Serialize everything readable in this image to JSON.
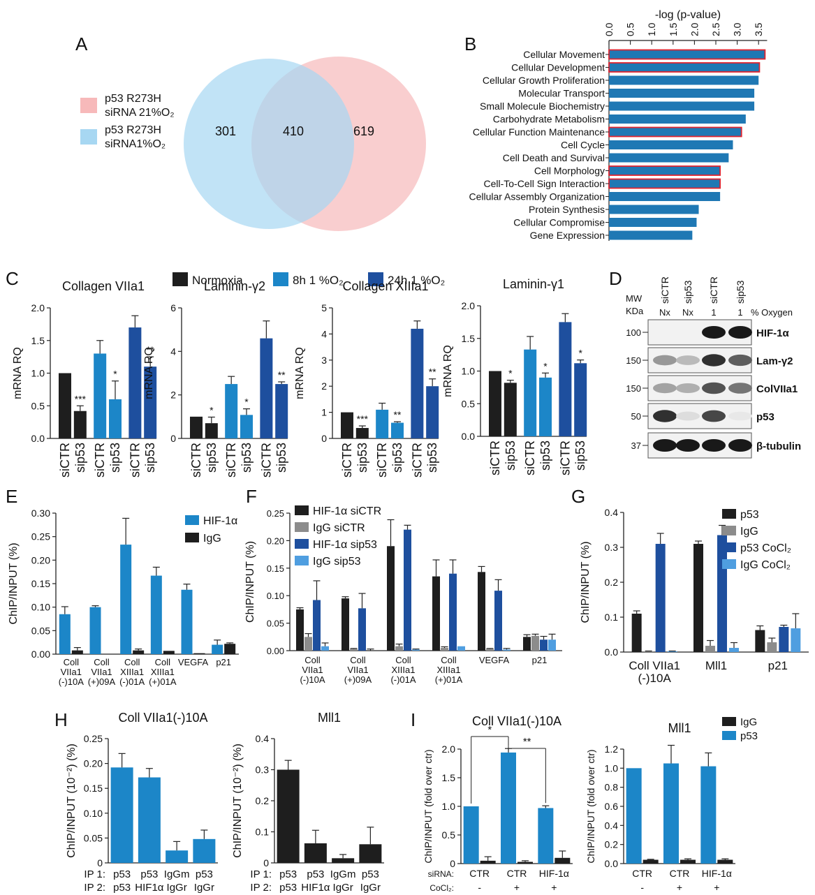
{
  "colors": {
    "black": "#1e1e1e",
    "gray": "#8c8c8c",
    "mid_blue": "#1c86c8",
    "dark_blue": "#1e4f9e",
    "light_blue": "#4f9ee0",
    "pink": "#f7b9ba",
    "lightblue_venn": "#a7d7f2",
    "red_box": "#e0242f",
    "panelB_bar": "#1f78b4"
  },
  "panel_letters": [
    "A",
    "B",
    "C",
    "D",
    "E",
    "F",
    "G",
    "H",
    "I"
  ],
  "panel_A": {
    "legend": [
      {
        "label_line1": "p53 R273H",
        "label_line2": "siRNA 21%O₂",
        "color": "pink"
      },
      {
        "label_line1": "p53 R273H",
        "label_line2": "siRNA1%O₂",
        "color": "lightblue_venn"
      }
    ],
    "counts": {
      "left": "301",
      "overlap": "410",
      "right": "619"
    }
  },
  "panel_B": {
    "title": "-log (p-value)",
    "ticks": [
      "0.0",
      "0.5",
      "1.0",
      "1.5",
      "2.0",
      "2.5",
      "3.0",
      "3.5"
    ]
  },
  "panel_C": {
    "legend": [
      {
        "label": "Normoxia",
        "color": "black"
      },
      {
        "label": "8h 1 %O₂",
        "color": "mid_blue"
      },
      {
        "label": "24h 1 %O₂",
        "color": "dark_blue"
      }
    ]
  },
  "panel_D": {
    "mw_header": "MW",
    "kda_header": "KDa",
    "oxygen_label": "% Oxygen",
    "lanes": [
      {
        "label": "siCTR",
        "oxygen": "Nx"
      },
      {
        "label": "sip53",
        "oxygen": "Nx"
      },
      {
        "label": "siCTR",
        "oxygen": "1"
      },
      {
        "label": "sip53",
        "oxygen": "1"
      }
    ],
    "blots": [
      {
        "mw": "100",
        "name": "HIF-1α",
        "intensity": [
          0,
          0,
          1,
          1
        ]
      },
      {
        "mw": "150",
        "name": "Lam-γ2",
        "intensity": [
          0.45,
          0.3,
          0.9,
          0.7
        ]
      },
      {
        "mw": "150",
        "name": "ColVIIa1",
        "intensity": [
          0.4,
          0.35,
          0.75,
          0.6
        ]
      },
      {
        "mw": "50",
        "name": "p53",
        "intensity": [
          0.9,
          0.15,
          0.8,
          0.1
        ]
      },
      {
        "mw": "37",
        "name": "β-tubulin",
        "intensity": [
          1,
          1,
          1,
          1
        ]
      }
    ]
  },
  "chart_data": [
    {
      "id": "B",
      "type": "bar",
      "orientation": "horizontal",
      "title": "-log (p-value)",
      "xlim": [
        0,
        3.7
      ],
      "categories": [
        "Cellular Movement",
        "Cellular Development",
        "Cellular Growth Proliferation",
        "Molecular Transport",
        "Small Molecule Biochemistry",
        "Carbohydrate Metabolism",
        "Cellular Function Maintenance",
        "Cell Cycle",
        "Cell Death and Survival",
        "Cell Morphology",
        "Cell-To-Cell Sign Interaction",
        "Cellular Assembly Organization",
        "Protein Synthesis",
        "Cellular Compromise",
        "Gene Expression"
      ],
      "values": [
        3.65,
        3.52,
        3.5,
        3.4,
        3.4,
        3.2,
        3.1,
        2.9,
        2.8,
        2.6,
        2.6,
        2.6,
        2.1,
        2.05,
        1.95
      ],
      "highlighted": [
        true,
        true,
        false,
        false,
        false,
        false,
        true,
        false,
        false,
        true,
        true,
        false,
        false,
        false,
        false
      ]
    },
    {
      "id": "C1",
      "type": "bar",
      "title": "Collagen VIIa1",
      "ylabel": "mRNA RQ",
      "ylim": [
        0,
        2.0
      ],
      "yticks": [
        "0.0",
        "0.5",
        "1.0",
        "1.5",
        "2.0"
      ],
      "categories": [
        "siCTR",
        "sip53",
        "siCTR",
        "sip53",
        "siCTR",
        "sip53"
      ],
      "values": [
        1.0,
        0.42,
        1.3,
        0.6,
        1.7,
        1.1
      ],
      "errors": [
        0,
        0.08,
        0.2,
        0.28,
        0.18,
        0.15
      ],
      "colors": [
        "black",
        "black",
        "mid_blue",
        "mid_blue",
        "dark_blue",
        "dark_blue"
      ],
      "significance": [
        "",
        "***",
        "",
        "*",
        "",
        "**"
      ]
    },
    {
      "id": "C2",
      "type": "bar",
      "title": "Laminin-γ2",
      "ylabel": "mRNA RQ",
      "ylim": [
        0,
        6
      ],
      "yticks": [
        "0",
        "2",
        "4",
        "6"
      ],
      "categories": [
        "siCTR",
        "sip53",
        "siCTR",
        "sip53",
        "siCTR",
        "sip53"
      ],
      "values": [
        1.0,
        0.7,
        2.5,
        1.08,
        4.6,
        2.5
      ],
      "errors": [
        0,
        0.28,
        0.35,
        0.28,
        0.8,
        0.1
      ],
      "colors": [
        "black",
        "black",
        "mid_blue",
        "mid_blue",
        "dark_blue",
        "dark_blue"
      ],
      "significance": [
        "",
        "*",
        "",
        "*",
        "",
        "**"
      ]
    },
    {
      "id": "C3",
      "type": "bar",
      "title": "Collagen XIIIa1",
      "ylabel": "mRNA RQ",
      "ylim": [
        0,
        5
      ],
      "yticks": [
        "0",
        "1",
        "2",
        "3",
        "4",
        "5"
      ],
      "categories": [
        "siCTR",
        "sip53",
        "siCTR",
        "sip53",
        "siCTR",
        "sip53"
      ],
      "values": [
        1.0,
        0.4,
        1.1,
        0.6,
        4.2,
        2.0
      ],
      "errors": [
        0,
        0.08,
        0.25,
        0.04,
        0.3,
        0.28
      ],
      "colors": [
        "black",
        "black",
        "mid_blue",
        "mid_blue",
        "dark_blue",
        "dark_blue"
      ],
      "significance": [
        "",
        "***",
        "",
        "**",
        "",
        "**"
      ]
    },
    {
      "id": "C4",
      "type": "bar",
      "title": "Laminin-γ1",
      "ylabel": "mRNA RQ",
      "ylim": [
        0,
        2.0
      ],
      "yticks": [
        "0.0",
        "0.5",
        "1.0",
        "1.5",
        "2.0"
      ],
      "categories": [
        "siCTR",
        "sip53",
        "siCTR",
        "sip53",
        "siCTR",
        "sip53"
      ],
      "values": [
        1.0,
        0.82,
        1.33,
        0.9,
        1.75,
        1.12
      ],
      "errors": [
        0,
        0.04,
        0.2,
        0.07,
        0.13,
        0.05
      ],
      "colors": [
        "black",
        "black",
        "mid_blue",
        "mid_blue",
        "dark_blue",
        "dark_blue"
      ],
      "significance": [
        "",
        "*",
        "",
        "*",
        "",
        "*"
      ]
    },
    {
      "id": "E",
      "type": "bar",
      "ylabel": "ChIP/INPUT (%)",
      "ylim": [
        0,
        0.3
      ],
      "yticks": [
        "0.00",
        "0.05",
        "0.10",
        "0.15",
        "0.20",
        "0.25",
        "0.30"
      ],
      "categories": [
        [
          "Coll",
          "VIIa1",
          "(-)10A"
        ],
        [
          "Coll",
          "VIIa1",
          "(+)09A"
        ],
        [
          "Coll",
          "XIIIa1",
          "(-)01A"
        ],
        [
          "Coll",
          "XIIIa1",
          "(+)01A"
        ],
        [
          "VEGFA"
        ],
        [
          "p21"
        ]
      ],
      "series": [
        {
          "name": "HIF-1α",
          "color": "mid_blue",
          "values": [
            0.085,
            0.1,
            0.233,
            0.167,
            0.137,
            0.02
          ],
          "errors": [
            0.016,
            0.003,
            0.056,
            0.018,
            0.012,
            0.01
          ]
        },
        {
          "name": "IgG",
          "color": "black",
          "values": [
            0.008,
            0.0,
            0.008,
            0.007,
            0.002,
            0.022
          ],
          "errors": [
            0.006,
            0,
            0.003,
            0,
            0,
            0.002
          ]
        }
      ]
    },
    {
      "id": "F",
      "type": "bar",
      "ylabel": "ChIP/INPUT (%)",
      "ylim": [
        0,
        0.25
      ],
      "yticks": [
        "0.00",
        "0.05",
        "0.10",
        "0.15",
        "0.20",
        "0.25"
      ],
      "categories": [
        [
          "Coll",
          "VIIa1",
          "(-)10A"
        ],
        [
          "Coll",
          "VIIa1",
          "(+)09A"
        ],
        [
          "Coll",
          "XIIIa1",
          "(-)01A"
        ],
        [
          "Coll",
          "XIIIa1",
          "(+)01A"
        ],
        [
          "VEGFA"
        ],
        [
          "p21"
        ]
      ],
      "series": [
        {
          "name": "HIF-1α siCTR",
          "color": "black",
          "values": [
            0.075,
            0.095,
            0.19,
            0.135,
            0.143,
            0.025
          ],
          "errors": [
            0.003,
            0.003,
            0.048,
            0.03,
            0.01,
            0.004
          ]
        },
        {
          "name": "IgG siCTR",
          "color": "gray",
          "values": [
            0.025,
            0.003,
            0.008,
            0.005,
            0.003,
            0.027
          ],
          "errors": [
            0.006,
            0.001,
            0.004,
            0.002,
            0.001,
            0.003
          ]
        },
        {
          "name": "HIF-1α sip53",
          "color": "dark_blue",
          "values": [
            0.092,
            0.077,
            0.22,
            0.14,
            0.109,
            0.02
          ],
          "errors": [
            0.035,
            0.027,
            0.008,
            0.025,
            0.02,
            0.006
          ]
        },
        {
          "name": "IgG sip53",
          "color": "light_blue",
          "values": [
            0.008,
            0.0,
            0.002,
            0.008,
            0.002,
            0.02
          ],
          "errors": [
            0.006,
            0.003,
            0.001,
            0,
            0.002,
            0.01
          ]
        }
      ]
    },
    {
      "id": "G",
      "type": "bar",
      "ylabel": "ChIP/INPUT (%)",
      "ylim": [
        0,
        0.4
      ],
      "yticks": [
        "0.0",
        "0.1",
        "0.2",
        "0.3",
        "0.4"
      ],
      "categories": [
        [
          "Coll VIIa1",
          "(-)10A"
        ],
        [
          "Mll1"
        ],
        [
          "p21"
        ]
      ],
      "series": [
        {
          "name": "p53",
          "color": "black",
          "values": [
            0.11,
            0.31,
            0.063
          ],
          "errors": [
            0.008,
            0.008,
            0.012
          ]
        },
        {
          "name": "IgG",
          "color": "gray",
          "values": [
            0.002,
            0.018,
            0.028
          ],
          "errors": [
            0.001,
            0.015,
            0.012
          ]
        },
        {
          "name": "p53 CoCl₂",
          "color": "dark_blue",
          "values": [
            0.31,
            0.335,
            0.072
          ],
          "errors": [
            0.03,
            0.028,
            0.005
          ]
        },
        {
          "name": "IgG CoCl₂",
          "color": "light_blue",
          "values": [
            0.002,
            0.012,
            0.068
          ],
          "errors": [
            0.001,
            0.015,
            0.042
          ]
        }
      ]
    },
    {
      "id": "H1",
      "type": "bar",
      "title": "Coll VIIa1(-)10A",
      "ylabel": "ChIP/INPUT (10⁻²) (%)",
      "ylim": [
        0,
        0.25
      ],
      "yticks": [
        "0",
        "0.05",
        "0.10",
        "0.15",
        "0.20",
        "0.25"
      ],
      "row_labels": [
        "IP 1:",
        "IP 2:"
      ],
      "categories": [
        [
          "p53",
          "p53"
        ],
        [
          "p53",
          "HIF1α"
        ],
        [
          "IgGm",
          "IgGr"
        ],
        [
          "p53",
          "IgGr"
        ]
      ],
      "values": [
        0.192,
        0.172,
        0.025,
        0.048
      ],
      "errors": [
        0.028,
        0.018,
        0.018,
        0.018
      ],
      "color": "mid_blue"
    },
    {
      "id": "H2",
      "type": "bar",
      "title": "Mll1",
      "ylabel": "ChIP/INPUT (10⁻²) (%)",
      "ylim": [
        0,
        0.4
      ],
      "yticks": [
        "0",
        "0.1",
        "0.2",
        "0.3",
        "0.4"
      ],
      "row_labels": [
        "IP 1:",
        "IP 2:"
      ],
      "categories": [
        [
          "p53",
          "p53"
        ],
        [
          "p53",
          "HIF1α"
        ],
        [
          "IgGm",
          "IgGr"
        ],
        [
          "p53",
          "IgGr"
        ]
      ],
      "values": [
        0.3,
        0.063,
        0.015,
        0.06
      ],
      "errors": [
        0.03,
        0.042,
        0.012,
        0.055
      ],
      "color": "black"
    },
    {
      "id": "I1",
      "type": "bar",
      "title": "Coll VIIa1(-)10A",
      "ylabel": "ChIP/INPUT (fold over ctr)",
      "ylim": [
        0,
        2.0
      ],
      "yticks": [
        "0",
        "0.5",
        "1.0",
        "1.5",
        "2.0"
      ],
      "row_labels": [
        "siRNA:",
        "CoCl₂:"
      ],
      "categories": [
        [
          "CTR",
          "-"
        ],
        [
          "CTR",
          "+"
        ],
        [
          "HIF-1α",
          "+"
        ]
      ],
      "series": [
        {
          "name": "p53",
          "color": "mid_blue",
          "values": [
            1.0,
            1.94,
            0.97
          ],
          "errors": [
            0,
            0.07,
            0.04
          ]
        },
        {
          "name": "IgG",
          "color": "black",
          "values": [
            0.05,
            0.03,
            0.1
          ],
          "errors": [
            0.07,
            0.02,
            0.12
          ]
        }
      ],
      "significance": [
        {
          "from": 0,
          "to": 1,
          "label": "*"
        },
        {
          "from": 1,
          "to": 2,
          "label": "**"
        }
      ]
    },
    {
      "id": "I2",
      "type": "bar",
      "title": "Mll1",
      "ylabel": "ChIP/INPUT (fold over ctr)",
      "ylim": [
        0,
        1.2
      ],
      "yticks": [
        "0.0",
        "0.2",
        "0.4",
        "0.6",
        "0.8",
        "1.0",
        "1.2"
      ],
      "categories": [
        [
          "CTR",
          "-"
        ],
        [
          "CTR",
          "+"
        ],
        [
          "HIF-1α",
          "+"
        ]
      ],
      "series": [
        {
          "name": "p53",
          "color": "mid_blue",
          "values": [
            1.0,
            1.05,
            1.02
          ],
          "errors": [
            0,
            0.19,
            0.14
          ]
        },
        {
          "name": "IgG",
          "color": "black",
          "values": [
            0.04,
            0.04,
            0.04
          ],
          "errors": [
            0.005,
            0.01,
            0.01
          ]
        }
      ],
      "legend": [
        {
          "label": "IgG",
          "color": "black"
        },
        {
          "label": "p53",
          "color": "mid_blue"
        }
      ]
    }
  ]
}
